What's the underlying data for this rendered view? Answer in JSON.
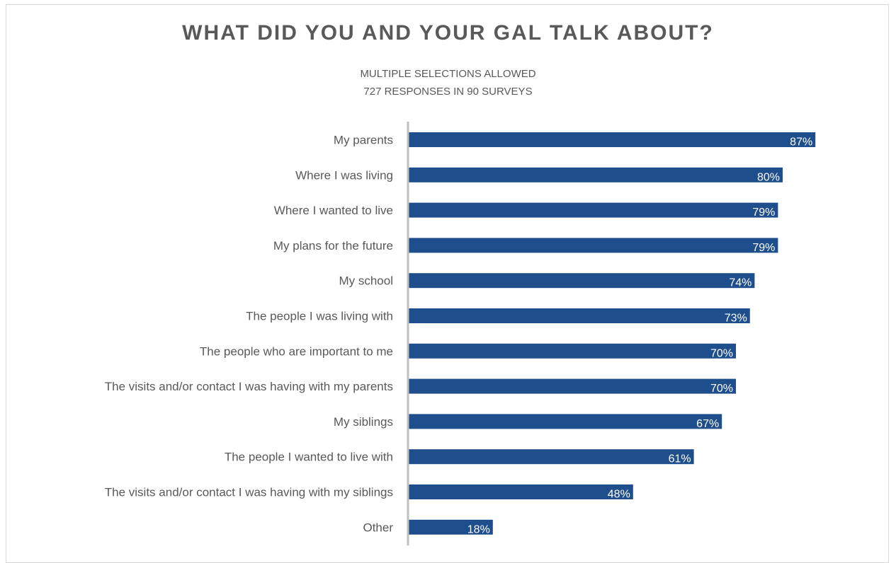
{
  "chart_data": {
    "type": "bar",
    "orientation": "horizontal",
    "title": "WHAT DID YOU AND YOUR GAL TALK ABOUT?",
    "subtitle_lines": [
      "MULTIPLE SELECTIONS  ALLOWED",
      "727 RESPONSES  IN 90 SURVEYS"
    ],
    "categories": [
      "My parents",
      "Where I was living",
      "Where I wanted to live",
      "My plans for the future",
      "My school",
      "The people I was living with",
      "The people who are important to me",
      "The visits and/or contact I was having with my parents",
      "My siblings",
      "The people I wanted to live with",
      "The visits and/or contact I was having with my siblings",
      "Other"
    ],
    "values": [
      87,
      80,
      79,
      79,
      74,
      73,
      70,
      70,
      67,
      61,
      48,
      18
    ],
    "value_labels": [
      "87%",
      "80%",
      "79%",
      "79%",
      "74%",
      "73%",
      "70%",
      "70%",
      "67%",
      "61%",
      "48%",
      "18%"
    ],
    "xlim": [
      0,
      100
    ],
    "grid": false,
    "legend": "none",
    "bar_color": "#1f4e8c",
    "axis_color": "#bfbfbf"
  }
}
